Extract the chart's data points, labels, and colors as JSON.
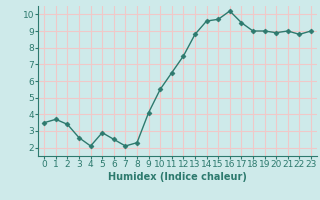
{
  "x": [
    0,
    1,
    2,
    3,
    4,
    5,
    6,
    7,
    8,
    9,
    10,
    11,
    12,
    13,
    14,
    15,
    16,
    17,
    18,
    19,
    20,
    21,
    22,
    23
  ],
  "y": [
    3.5,
    3.7,
    3.4,
    2.6,
    2.1,
    2.9,
    2.5,
    2.1,
    2.3,
    4.1,
    5.5,
    6.5,
    7.5,
    8.8,
    9.6,
    9.7,
    10.2,
    9.5,
    9.0,
    9.0,
    8.9,
    9.0,
    8.8,
    9.0
  ],
  "line_color": "#2d7a6e",
  "marker": "D",
  "marker_size": 2.5,
  "bg_color": "#ceeaea",
  "grid_color": "#f0c8c8",
  "xlabel": "Humidex (Indice chaleur)",
  "xlabel_color": "#2d7a6e",
  "tick_color": "#2d7a6e",
  "ylim": [
    1.5,
    10.5
  ],
  "xlim": [
    -0.5,
    23.5
  ],
  "yticks": [
    2,
    3,
    4,
    5,
    6,
    7,
    8,
    9,
    10
  ],
  "xticks": [
    0,
    1,
    2,
    3,
    4,
    5,
    6,
    7,
    8,
    9,
    10,
    11,
    12,
    13,
    14,
    15,
    16,
    17,
    18,
    19,
    20,
    21,
    22,
    23
  ],
  "line_width": 1.0,
  "font_size_label": 7,
  "font_size_tick": 6.5
}
